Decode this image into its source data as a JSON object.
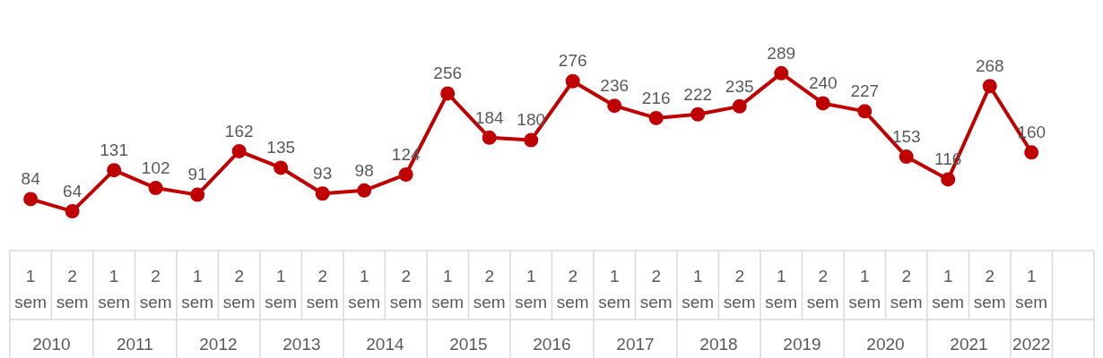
{
  "chart_data": {
    "type": "line",
    "categories": [
      "1 sem",
      "2 sem",
      "1 sem",
      "2 sem",
      "1 sem",
      "2 sem",
      "1 sem",
      "2 sem",
      "1 sem",
      "2 sem",
      "1 sem",
      "2 sem",
      "1 sem",
      "2 sem",
      "1 sem",
      "2 sem",
      "1 sem",
      "2 sem",
      "1 sem",
      "2 sem",
      "1 sem",
      "2 sem",
      "1 sem",
      "2 sem",
      "1 sem",
      null
    ],
    "series": [
      {
        "color": "#c00000",
        "values": [
          84,
          64,
          131,
          102,
          91,
          162,
          135,
          93,
          98,
          124,
          256,
          184,
          180,
          276,
          236,
          216,
          222,
          235,
          289,
          240,
          227,
          153,
          116,
          268,
          160,
          null
        ]
      }
    ],
    "annotations": [
      "2010",
      "2011",
      "2012",
      "2013",
      "2014",
      "2015",
      "2016",
      "2017",
      "2018",
      "2019",
      "2020",
      "2021",
      "2022"
    ],
    "data_labels": true,
    "marker": "circle",
    "line_style": "solid",
    "grid": false,
    "legend": false,
    "tick_labels": "x"
  }
}
